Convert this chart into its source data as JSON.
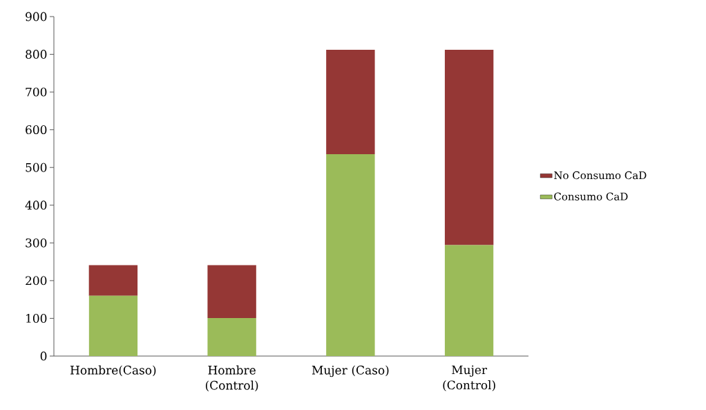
{
  "chart_data": {
    "type": "bar",
    "stacked": true,
    "categories": [
      "Hombre(Caso)",
      "Hombre (Control)",
      "Mujer (Caso)",
      "Mujer (Control)"
    ],
    "series": [
      {
        "name": "Consumo CaD",
        "color": "#9bbb59",
        "values": [
          160,
          101,
          535,
          294
        ]
      },
      {
        "name": "No Consumo CaD",
        "color": "#953735",
        "values": [
          81,
          140,
          277,
          518
        ]
      }
    ],
    "ylim": [
      0,
      900
    ],
    "yticks": [
      0,
      100,
      200,
      300,
      400,
      500,
      600,
      700,
      800,
      900
    ],
    "grid": false,
    "legend": "right"
  }
}
